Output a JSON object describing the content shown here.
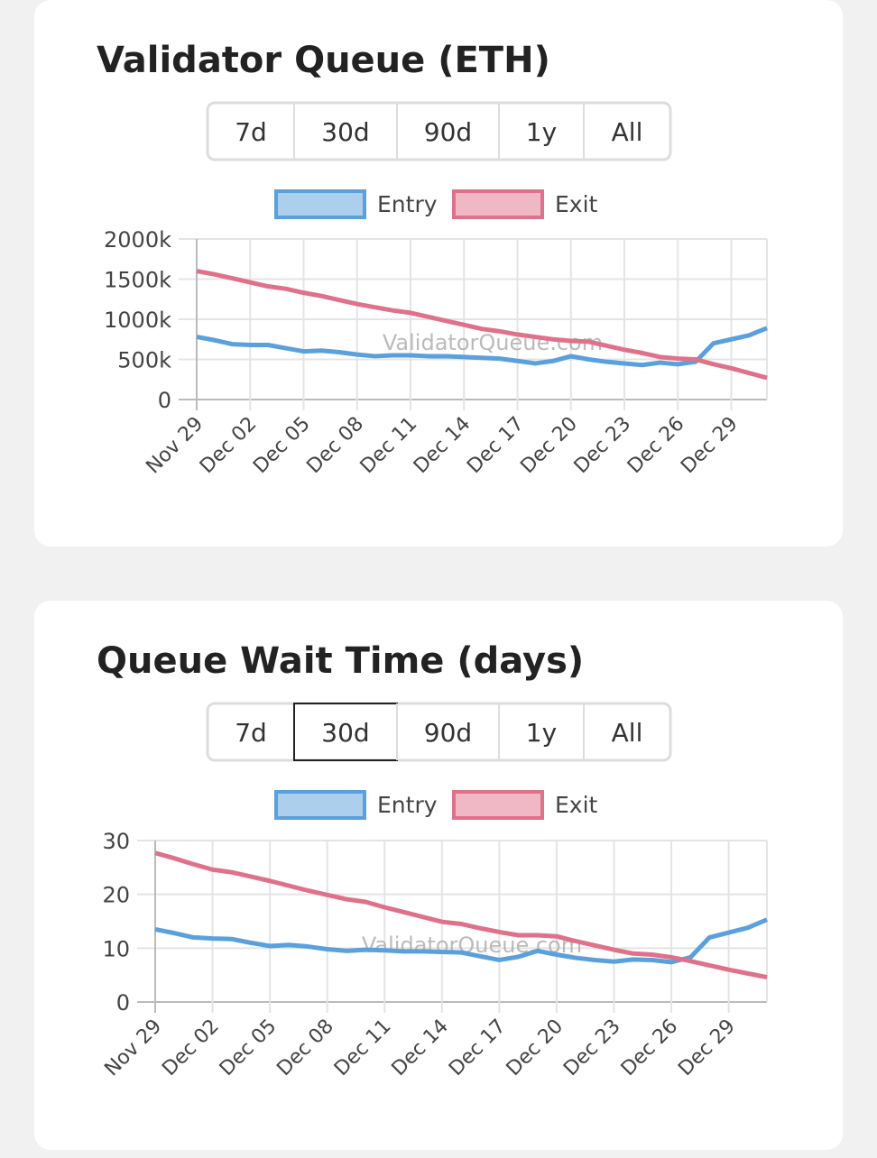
{
  "chart_data": [
    {
      "type": "line",
      "title": "Validator Queue (ETH)",
      "range_buttons": [
        "7d",
        "30d",
        "90d",
        "1y",
        "All"
      ],
      "watermark": "ValidatorQueue.com",
      "categories": [
        "Nov 29",
        null,
        null,
        "Dec 02",
        null,
        null,
        "Dec 05",
        null,
        null,
        "Dec 08",
        null,
        null,
        "Dec 11",
        null,
        null,
        "Dec 14",
        null,
        null,
        "Dec 17",
        null,
        null,
        "Dec 20",
        null,
        null,
        "Dec 23",
        null,
        null,
        "Dec 26",
        null,
        null,
        "Dec 29",
        null,
        null
      ],
      "series": [
        {
          "name": "Entry",
          "color": "#5aa0dc",
          "values": [
            780000,
            740000,
            690000,
            680000,
            680000,
            640000,
            600000,
            610000,
            590000,
            560000,
            540000,
            550000,
            550000,
            540000,
            540000,
            530000,
            520000,
            510000,
            480000,
            450000,
            480000,
            540000,
            500000,
            470000,
            450000,
            430000,
            460000,
            440000,
            470000,
            700000,
            750000,
            800000,
            890000
          ]
        },
        {
          "name": "Exit",
          "color": "#e0718a",
          "values": [
            1600000,
            1560000,
            1510000,
            1460000,
            1410000,
            1380000,
            1330000,
            1290000,
            1240000,
            1190000,
            1150000,
            1110000,
            1080000,
            1030000,
            980000,
            930000,
            880000,
            850000,
            810000,
            780000,
            750000,
            730000,
            720000,
            670000,
            620000,
            580000,
            530000,
            510000,
            500000,
            440000,
            390000,
            330000,
            270000
          ]
        }
      ],
      "ylim": [
        0,
        2000000
      ],
      "yticks": [
        0,
        {
          "value": 500000,
          "label": "500k"
        },
        {
          "value": 1000000,
          "label": "1000k"
        },
        {
          "value": 1500000,
          "label": "1500k"
        },
        {
          "value": 2000000,
          "label": "2000k"
        }
      ],
      "grid": true,
      "legend": "top"
    },
    {
      "type": "line",
      "title": "Queue Wait Time (days)",
      "range_buttons": [
        "7d",
        "30d",
        "90d",
        "1y",
        "All"
      ],
      "selected_range": "30d",
      "watermark": "ValidatorQueue.com",
      "categories": [
        "Nov 29",
        null,
        null,
        "Dec 02",
        null,
        null,
        "Dec 05",
        null,
        null,
        "Dec 08",
        null,
        null,
        "Dec 11",
        null,
        null,
        "Dec 14",
        null,
        null,
        "Dec 17",
        null,
        null,
        "Dec 20",
        null,
        null,
        "Dec 23",
        null,
        null,
        "Dec 26",
        null,
        null,
        "Dec 29",
        null,
        null
      ],
      "series": [
        {
          "name": "Entry",
          "color": "#5aa0dc",
          "values": [
            13.5,
            12.8,
            12,
            11.8,
            11.7,
            11,
            10.4,
            10.6,
            10.3,
            9.8,
            9.5,
            9.7,
            9.6,
            9.4,
            9.4,
            9.3,
            9.2,
            8.5,
            7.8,
            8.4,
            9.5,
            8.8,
            8.2,
            7.8,
            7.5,
            7.9,
            7.8,
            7.4,
            8.3,
            12,
            12.9,
            13.8,
            15.3
          ]
        },
        {
          "name": "Exit",
          "color": "#e0718a",
          "values": [
            27.7,
            26.7,
            25.6,
            24.6,
            24.1,
            23.3,
            22.5,
            21.6,
            20.7,
            19.9,
            19.1,
            18.6,
            17.6,
            16.7,
            15.8,
            14.9,
            14.5,
            13.7,
            13,
            12.4,
            12.4,
            12.2,
            11.3,
            10.5,
            9.7,
            9,
            8.8,
            8.3,
            7.6,
            6.8,
            6,
            5.3,
            4.6
          ]
        }
      ],
      "ylim": [
        0,
        30
      ],
      "yticks": [
        0,
        10,
        20,
        30
      ],
      "grid": true,
      "legend": "top"
    }
  ]
}
